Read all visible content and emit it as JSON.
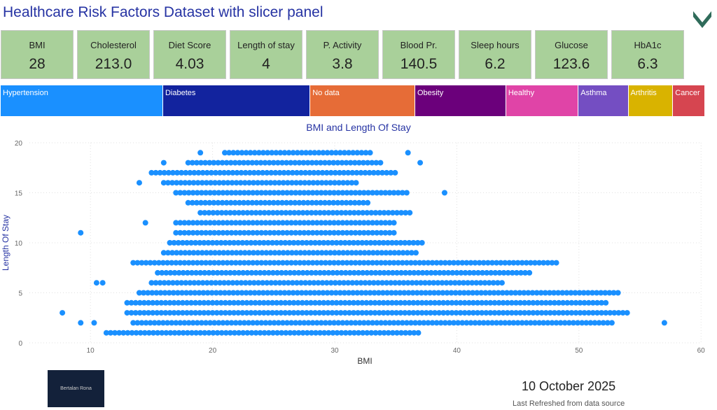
{
  "header": {
    "title": "Healthcare Risk Factors Dataset with slicer panel"
  },
  "cards": [
    {
      "label": "BMI",
      "value": "28"
    },
    {
      "label": "Cholesterol",
      "value": "213.0"
    },
    {
      "label": "Diet Score",
      "value": "4.03"
    },
    {
      "label": "Length of stay",
      "value": "4"
    },
    {
      "label": "P. Activity",
      "value": "3.8"
    },
    {
      "label": "Blood Pr.",
      "value": "140.5"
    },
    {
      "label": "Sleep hours",
      "value": "6.2"
    },
    {
      "label": "Glucose",
      "value": "123.6"
    },
    {
      "label": "HbA1c",
      "value": "6.3"
    }
  ],
  "slicer": [
    {
      "label": "Hypertension",
      "color": "#1a90ff",
      "share": 23.8
    },
    {
      "label": "Diabetes",
      "color": "#12239e",
      "share": 21.5
    },
    {
      "label": "No data",
      "color": "#e66c37",
      "share": 15.1
    },
    {
      "label": "Obesity",
      "color": "#6b007b",
      "share": 13
    },
    {
      "label": "Healthy",
      "color": "#e044a7",
      "share": 10.2
    },
    {
      "label": "Asthma",
      "color": "#744ec2",
      "share": 6.8
    },
    {
      "label": "Arthritis",
      "color": "#d9b300",
      "share": 6
    },
    {
      "label": "Cancer",
      "color": "#d64550",
      "share": 4.1
    }
  ],
  "chart_data": {
    "type": "scatter",
    "title": "BMI and Length Of Stay",
    "xlabel": "BMI",
    "ylabel": "Length Of Stay",
    "xlim": [
      5,
      60
    ],
    "ylim": [
      0,
      20
    ],
    "xticks": [
      10,
      20,
      30,
      40,
      50,
      60
    ],
    "yticks": [
      0,
      5,
      10,
      15,
      20
    ],
    "color": "#1a90ff",
    "grid": true,
    "rows": [
      {
        "y": 1,
        "xmin": 11.3,
        "xmax": 37
      },
      {
        "y": 2,
        "xmin": 13.5,
        "xmax": 53
      },
      {
        "y": 3,
        "xmin": 13,
        "xmax": 54
      },
      {
        "y": 4,
        "xmin": 13,
        "xmax": 52.5
      },
      {
        "y": 5,
        "xmin": 14,
        "xmax": 53.5
      },
      {
        "y": 6,
        "xmin": 15,
        "xmax": 44
      },
      {
        "y": 7,
        "xmin": 15.5,
        "xmax": 46
      },
      {
        "y": 8,
        "xmin": 13.5,
        "xmax": 48.5
      },
      {
        "y": 9,
        "xmin": 16,
        "xmax": 37
      },
      {
        "y": 10,
        "xmin": 16.5,
        "xmax": 37.5
      },
      {
        "y": 11,
        "xmin": 17,
        "xmax": 35
      },
      {
        "y": 12,
        "xmin": 17,
        "xmax": 35
      },
      {
        "y": 13,
        "xmin": 19,
        "xmax": 36.5
      },
      {
        "y": 14,
        "xmin": 18,
        "xmax": 33
      },
      {
        "y": 15,
        "xmin": 17,
        "xmax": 36
      },
      {
        "y": 16,
        "xmin": 16,
        "xmax": 32
      },
      {
        "y": 17,
        "xmin": 15,
        "xmax": 35
      },
      {
        "y": 18,
        "xmin": 18,
        "xmax": 34
      },
      {
        "y": 19,
        "xmin": 21,
        "xmax": 33
      }
    ],
    "outliers": [
      [
        9.2,
        2
      ],
      [
        10.3,
        2
      ],
      [
        57,
        2
      ],
      [
        7.7,
        3
      ],
      [
        10.5,
        6
      ],
      [
        11,
        6
      ],
      [
        9.2,
        11
      ],
      [
        14.5,
        12
      ],
      [
        39,
        15
      ],
      [
        14,
        16
      ],
      [
        16,
        18
      ],
      [
        37,
        18
      ],
      [
        19,
        19
      ],
      [
        36,
        19
      ]
    ]
  },
  "footer": {
    "brand": "Bertalan Rona",
    "date": "10 October 2025",
    "refresh": "Last Refreshed from data source"
  }
}
